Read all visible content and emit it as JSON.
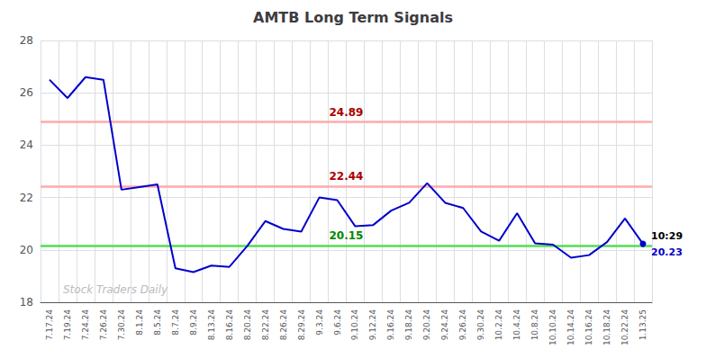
{
  "chart_data": {
    "type": "line",
    "title": "AMTB Long Term Signals",
    "categories": [
      "7.17.24",
      "7.19.24",
      "7.24.24",
      "7.26.24",
      "7.30.24",
      "8.1.24",
      "8.5.24",
      "8.7.24",
      "8.9.24",
      "8.13.24",
      "8.16.24",
      "8.20.24",
      "8.22.24",
      "8.26.24",
      "8.29.24",
      "9.3.24",
      "9.6.24",
      "9.10.24",
      "9.12.24",
      "9.16.24",
      "9.18.24",
      "9.20.24",
      "9.24.24",
      "9.26.24",
      "9.30.24",
      "10.2.24",
      "10.4.24",
      "10.8.24",
      "10.10.24",
      "10.14.24",
      "10.16.24",
      "10.18.24",
      "10.22.24",
      "1.13.25"
    ],
    "values": [
      26.5,
      25.8,
      26.6,
      26.5,
      22.3,
      22.4,
      22.5,
      19.3,
      19.15,
      19.4,
      19.35,
      20.15,
      21.1,
      20.8,
      20.7,
      22.0,
      21.9,
      20.9,
      20.95,
      21.5,
      21.8,
      22.55,
      21.8,
      21.6,
      20.7,
      20.35,
      21.4,
      20.25,
      20.2,
      19.7,
      19.8,
      20.3,
      21.2,
      20.23
    ],
    "color": "#0000cc",
    "ylim": [
      18,
      28
    ],
    "yticks": [
      18,
      20,
      22,
      24,
      26,
      28
    ],
    "grid": true,
    "hlines": [
      {
        "value": 24.89,
        "label": "24.89",
        "color": "#ffaaaa",
        "label_color": "#aa0000"
      },
      {
        "value": 22.44,
        "label": "22.44",
        "color": "#ffaaaa",
        "label_color": "#aa0000"
      },
      {
        "value": 20.15,
        "label": "20.15",
        "color": "#55dd55",
        "label_color": "#008800"
      }
    ],
    "annotations": [
      {
        "text": "10:29",
        "x": "1.13.25",
        "y": 20.23,
        "color": "#000000"
      },
      {
        "text": "20.23",
        "x": "1.13.25",
        "y": 20.23,
        "color": "#0000cc"
      }
    ],
    "watermark": {
      "text": "Stock Traders Daily",
      "color": "#bbbbbb"
    }
  }
}
